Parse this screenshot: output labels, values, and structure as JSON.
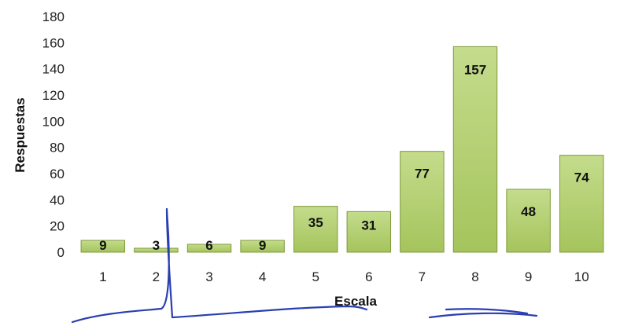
{
  "chart_data": {
    "type": "bar",
    "title": "",
    "xlabel": "Escala",
    "ylabel": "Respuestas",
    "categories": [
      "1",
      "2",
      "3",
      "4",
      "5",
      "6",
      "7",
      "8",
      "9",
      "10"
    ],
    "series": [
      {
        "values": [
          9,
          3,
          6,
          9,
          35,
          31,
          77,
          157,
          48,
          74
        ],
        "data_labels": [
          "9",
          "3",
          "6",
          "9",
          "35",
          "31",
          "77",
          "157",
          "48",
          "74"
        ]
      }
    ],
    "ylim": [
      0,
      180
    ],
    "yticks": [
      0,
      20,
      40,
      60,
      80,
      100,
      120,
      140,
      160,
      180
    ],
    "grid": false,
    "legend": "none",
    "colors": {
      "bar_top": "#c4dc8c",
      "bar_bottom": "#a5c45c",
      "bar_edge": "#7f9a3a",
      "annotation_ink": "#2a3fb0"
    }
  }
}
